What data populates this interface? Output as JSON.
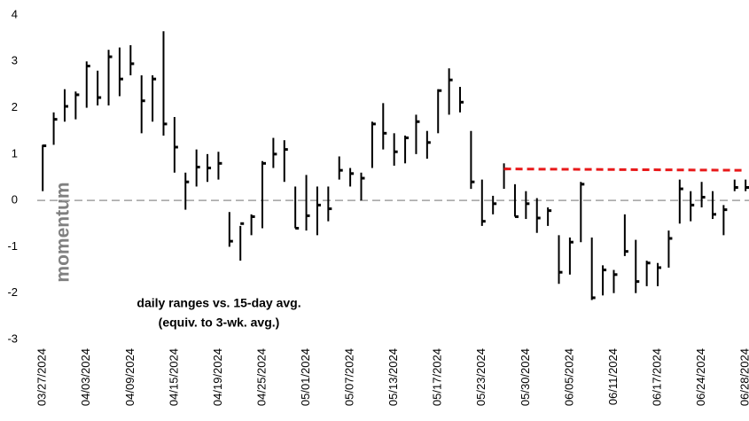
{
  "chart_data": {
    "type": "ohlc",
    "annotations": [
      "momentum",
      "daily ranges vs. 15-day avg.",
      "(equiv. to 3-wk. avg.)"
    ],
    "categories": [
      "03/27/2024",
      null,
      null,
      null,
      "04/03/2024",
      null,
      null,
      null,
      "04/09/2024",
      null,
      null,
      null,
      "04/15/2024",
      null,
      null,
      null,
      "04/19/2024",
      null,
      null,
      null,
      "04/25/2024",
      null,
      null,
      null,
      "05/01/2024",
      null,
      null,
      null,
      "05/07/2024",
      null,
      null,
      null,
      "05/13/2024",
      null,
      null,
      null,
      "05/17/2024",
      null,
      null,
      null,
      "05/23/2024",
      null,
      null,
      null,
      "05/30/2024",
      null,
      null,
      null,
      "06/05/2024",
      null,
      null,
      null,
      "06/11/2024",
      null,
      null,
      null,
      "06/17/2024",
      null,
      null,
      null,
      "06/24/2024",
      null,
      null,
      null,
      "06/28/2024"
    ],
    "high": [
      1.2,
      1.9,
      2.4,
      2.35,
      3.0,
      2.8,
      3.25,
      3.3,
      3.35,
      2.7,
      2.7,
      3.65,
      1.8,
      0.6,
      1.1,
      1.0,
      1.05,
      -0.25,
      -0.55,
      -0.3,
      0.85,
      1.35,
      1.3,
      0.3,
      0.55,
      0.3,
      0.3,
      0.95,
      0.7,
      0.6,
      1.7,
      2.1,
      1.45,
      1.4,
      1.85,
      1.5,
      2.4,
      2.85,
      2.45,
      1.5,
      0.45,
      0.1,
      0.8,
      0.35,
      0.2,
      0.05,
      -0.15,
      -0.75,
      -0.8,
      0.4,
      -0.8,
      -1.4,
      -1.5,
      -0.3,
      -0.85,
      -1.3,
      -1.35,
      -0.65,
      0.45,
      0.2,
      0.4,
      0.2,
      -0.1,
      0.45,
      0.45
    ],
    "low": [
      0.2,
      1.2,
      1.7,
      1.75,
      2.0,
      2.05,
      2.05,
      2.25,
      2.7,
      1.45,
      1.7,
      1.4,
      0.6,
      -0.2,
      0.3,
      0.4,
      0.45,
      -1.0,
      -1.3,
      -0.75,
      -0.6,
      0.7,
      0.4,
      -0.6,
      -0.65,
      -0.75,
      -0.45,
      0.45,
      0.3,
      0.0,
      0.7,
      1.1,
      0.75,
      0.8,
      1.0,
      0.9,
      1.45,
      1.85,
      1.9,
      0.25,
      -0.55,
      -0.3,
      0.25,
      -0.35,
      -0.4,
      -0.7,
      -0.55,
      -1.8,
      -1.6,
      -0.9,
      -2.15,
      -2.05,
      -2.0,
      -1.2,
      -2.0,
      -1.85,
      -1.85,
      -1.45,
      -0.5,
      -0.45,
      -0.15,
      -0.4,
      -0.75,
      0.2,
      0.2
    ],
    "close": [
      1.18,
      1.75,
      2.03,
      2.28,
      2.9,
      2.22,
      3.1,
      2.62,
      2.95,
      2.15,
      2.62,
      1.65,
      1.15,
      0.4,
      0.72,
      0.7,
      0.8,
      -0.88,
      -0.5,
      -0.35,
      0.8,
      1.0,
      1.1,
      -0.6,
      -0.33,
      -0.1,
      -0.18,
      0.65,
      0.58,
      0.48,
      1.65,
      1.45,
      1.05,
      1.35,
      1.7,
      1.25,
      2.37,
      2.6,
      2.12,
      0.4,
      -0.45,
      -0.07,
      0.68,
      -0.35,
      -0.07,
      -0.38,
      -0.22,
      -1.55,
      -0.9,
      0.35,
      -2.1,
      -1.5,
      -1.6,
      -1.1,
      -1.75,
      -1.35,
      -1.45,
      -0.82,
      0.25,
      -0.1,
      0.07,
      -0.3,
      -0.2,
      0.28,
      0.28
    ],
    "color": "#000000",
    "reference_line": {
      "color": "#e8191a",
      "values": [
        null,
        null,
        null,
        null,
        null,
        null,
        null,
        null,
        null,
        null,
        null,
        null,
        null,
        null,
        null,
        null,
        null,
        null,
        null,
        null,
        null,
        null,
        null,
        null,
        null,
        null,
        null,
        null,
        null,
        null,
        null,
        null,
        null,
        null,
        null,
        null,
        null,
        null,
        null,
        null,
        null,
        null,
        0.68,
        null,
        null,
        null,
        null,
        null,
        null,
        null,
        null,
        null,
        null,
        null,
        null,
        null,
        null,
        null,
        null,
        null,
        null,
        null,
        null,
        null,
        0.65
      ]
    },
    "ylim": [
      -3,
      4
    ],
    "yticks": [
      -3,
      -2,
      -1,
      0,
      1,
      2,
      3,
      4
    ],
    "zero_line": true
  }
}
